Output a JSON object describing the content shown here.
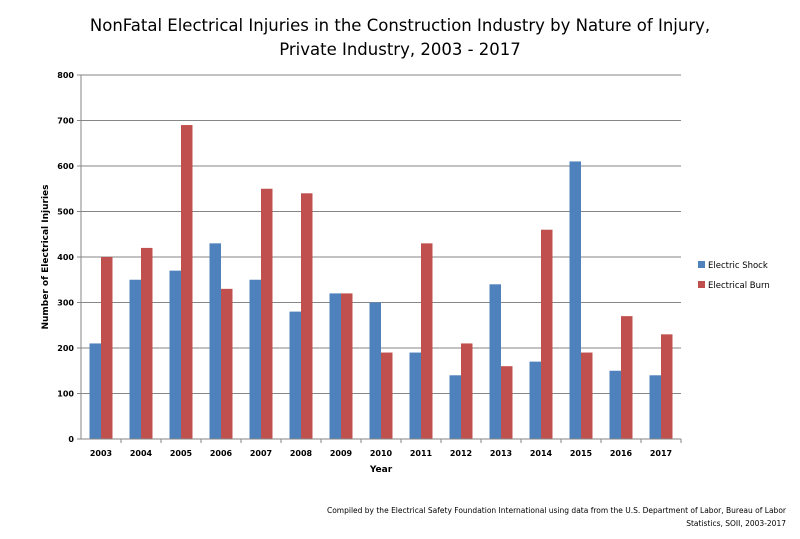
{
  "chart_data": {
    "type": "bar",
    "title_lines": [
      "NonFatal Electrical Injuries in the Construction Industry by Nature of Injury,",
      "Private Industry, 2003 - 2017"
    ],
    "xlabel": "Year",
    "ylabel": "Number of Electrical Injuries",
    "ylim": [
      0,
      800
    ],
    "yticks": [
      0,
      100,
      200,
      300,
      400,
      500,
      600,
      700,
      800
    ],
    "grid": true,
    "legend_position": "right",
    "categories": [
      "2003",
      "2004",
      "2005",
      "2006",
      "2007",
      "2008",
      "2009",
      "2010",
      "2011",
      "2012",
      "2013",
      "2014",
      "2015",
      "2016",
      "2017"
    ],
    "series": [
      {
        "name": "Electric Shock",
        "color": "#4F81BD",
        "values": [
          210,
          350,
          370,
          430,
          350,
          280,
          320,
          300,
          190,
          140,
          340,
          170,
          610,
          150,
          140
        ]
      },
      {
        "name": "Electrical Burn",
        "color": "#C0504D",
        "values": [
          400,
          420,
          690,
          330,
          550,
          540,
          320,
          190,
          430,
          210,
          160,
          460,
          190,
          270,
          230
        ]
      }
    ]
  },
  "source_note_lines": [
    "Compiled by the Electrical Safety Foundation International using data from the U.S. Department of Labor, Bureau of Labor",
    "Statistics, SOII, 2003-2017"
  ]
}
